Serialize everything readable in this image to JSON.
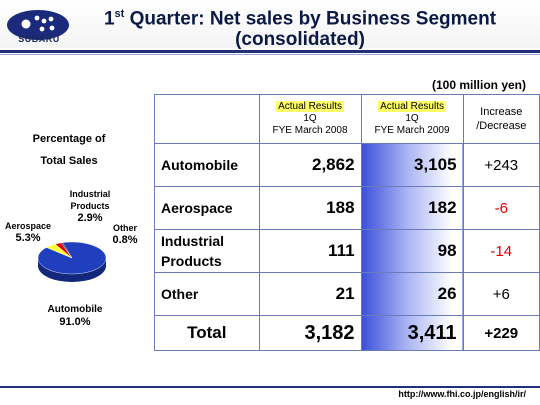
{
  "header": {
    "brand": "SUBARU",
    "title_line1_pre": "1",
    "title_line1_sup": "st",
    "title_line1_post": " Quarter: Net sales by Business Segment",
    "title_line2": "(consolidated)"
  },
  "unit": "(100 million yen)",
  "pie": {
    "title_line1": "Percentage of",
    "title_line2": "Total Sales",
    "labels": {
      "automobile_name": "Automobile",
      "automobile_pct": "91.0%",
      "aerospace_name": "Aerospace",
      "aerospace_pct": "5.3%",
      "industrial_name_1": "Industrial",
      "industrial_name_2": "Products",
      "industrial_pct": "2.9%",
      "other_name": "Other",
      "other_pct": "0.8%"
    }
  },
  "table": {
    "col1_head_1": "Actual Results",
    "col1_head_2": "1Q",
    "col1_head_3": "FYE March 2008",
    "col2_head_1": "Actual Results",
    "col2_head_2": "1Q",
    "col2_head_3": "FYE March 2009",
    "col3_head_1": "Increase",
    "col3_head_2": "/Decrease",
    "rows": [
      {
        "segment": "Automobile",
        "segment_2": "",
        "fy2008": "2,862",
        "fy2009": "3,105",
        "change": "+243"
      },
      {
        "segment": "Aerospace",
        "segment_2": "",
        "fy2008": "188",
        "fy2009": "182",
        "change": "-6"
      },
      {
        "segment": "Industrial",
        "segment_2": "Products",
        "fy2008": "111",
        "fy2009": "98",
        "change": "-14"
      },
      {
        "segment": "Other",
        "segment_2": "",
        "fy2008": "21",
        "fy2009": "26",
        "change": "+6"
      }
    ],
    "total": {
      "label": "Total",
      "fy2008": "3,182",
      "fy2009": "3,411",
      "change": "+229"
    }
  },
  "colors": {
    "automobile": "#1f3fbf",
    "aerospace": "#ffff33",
    "industrial": "#e00000",
    "other": "#2a2a2a",
    "negative": "#e00000"
  },
  "footer": {
    "url": "http://www.fhi.co.jp/english/ir/"
  },
  "chart_data": {
    "type": "pie",
    "title": "Percentage of Total Sales",
    "categories": [
      "Automobile",
      "Aerospace",
      "Industrial Products",
      "Other"
    ],
    "values": [
      91.0,
      5.3,
      2.9,
      0.8
    ]
  }
}
